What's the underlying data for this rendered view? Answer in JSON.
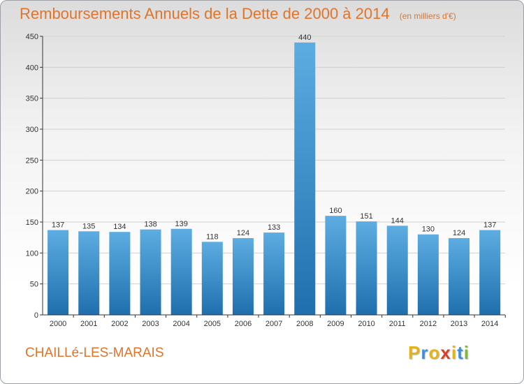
{
  "header": {
    "title": "Remboursements Annuels de la Dette de 2000 à 2014",
    "unit": "(en milliers d'€)"
  },
  "footer": {
    "commune": "CHAILLé-LES-MARAIS",
    "logo_letters": [
      "P",
      "r",
      "o",
      "x",
      "i",
      "t",
      "i"
    ],
    "logo_colors": [
      "#e4b21a",
      "#3e8fd8",
      "#e4b21a",
      "#d93f2b",
      "#e4b21a",
      "#3e8fd8",
      "#7fb83a"
    ]
  },
  "colors": {
    "bar_light": "#5dade2",
    "bar_dark": "#1f6fae",
    "title": "#e0742a",
    "grid": "#d0d0d0"
  },
  "chart_data": {
    "type": "bar",
    "categories": [
      "2000",
      "2001",
      "2002",
      "2003",
      "2004",
      "2005",
      "2006",
      "2007",
      "2008",
      "2009",
      "2010",
      "2011",
      "2012",
      "2013",
      "2014"
    ],
    "values": [
      137,
      135,
      134,
      138,
      139,
      118,
      124,
      133,
      440,
      160,
      151,
      144,
      130,
      124,
      137
    ],
    "ylim": [
      0,
      450
    ],
    "yticks": [
      0,
      50,
      100,
      150,
      200,
      250,
      300,
      350,
      400,
      450
    ],
    "grid": true,
    "xlabel": "",
    "ylabel": ""
  }
}
